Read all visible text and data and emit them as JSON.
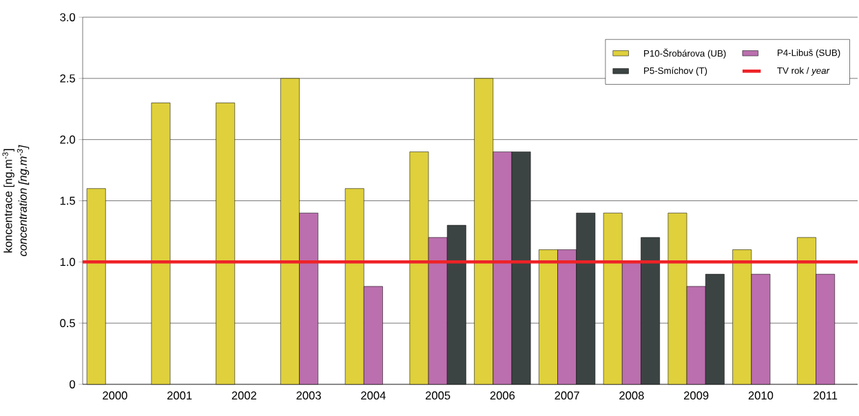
{
  "chart_data": {
    "type": "bar",
    "ylabel": [
      "koncentrace [ng.m$^{-3}$]",
      "*concentration [ng.m$^{-3}$]*"
    ],
    "categories": [
      "2000",
      "2001",
      "2002",
      "2003",
      "2004",
      "2005",
      "2006",
      "2007",
      "2008",
      "2009",
      "2010",
      "2011"
    ],
    "series": [
      {
        "name": "P10-Šrobárova (UB)",
        "color": "#dfd03c",
        "values": [
          1.6,
          2.3,
          2.3,
          2.5,
          1.6,
          1.9,
          2.5,
          1.1,
          1.4,
          1.4,
          1.1,
          1.2
        ]
      },
      {
        "name": "P4-Libuš (SUB)",
        "color": "#bb6fae",
        "values": [
          null,
          null,
          null,
          1.4,
          0.8,
          1.2,
          1.9,
          1.1,
          1.0,
          0.8,
          0.9,
          0.9
        ]
      },
      {
        "name": "P5-Smíchov (T)",
        "color": "#3c4443",
        "values": [
          null,
          null,
          null,
          null,
          null,
          1.3,
          1.9,
          1.4,
          1.2,
          0.9,
          null,
          null
        ]
      }
    ],
    "ref_lines": [
      {
        "axis": "y",
        "value": 1.0,
        "label": "TV rok / *year*",
        "color": "#ee2227"
      }
    ],
    "ylim": [
      0,
      3.0
    ],
    "yticks": [
      0,
      0.5,
      {
        "value": 1.0,
        "label": "1.0"
      },
      1.5,
      {
        "value": 2.0,
        "label": "2.0"
      },
      2.5,
      {
        "value": 3.0,
        "label": "3.0"
      }
    ],
    "grid": "y",
    "legend": "top right"
  }
}
